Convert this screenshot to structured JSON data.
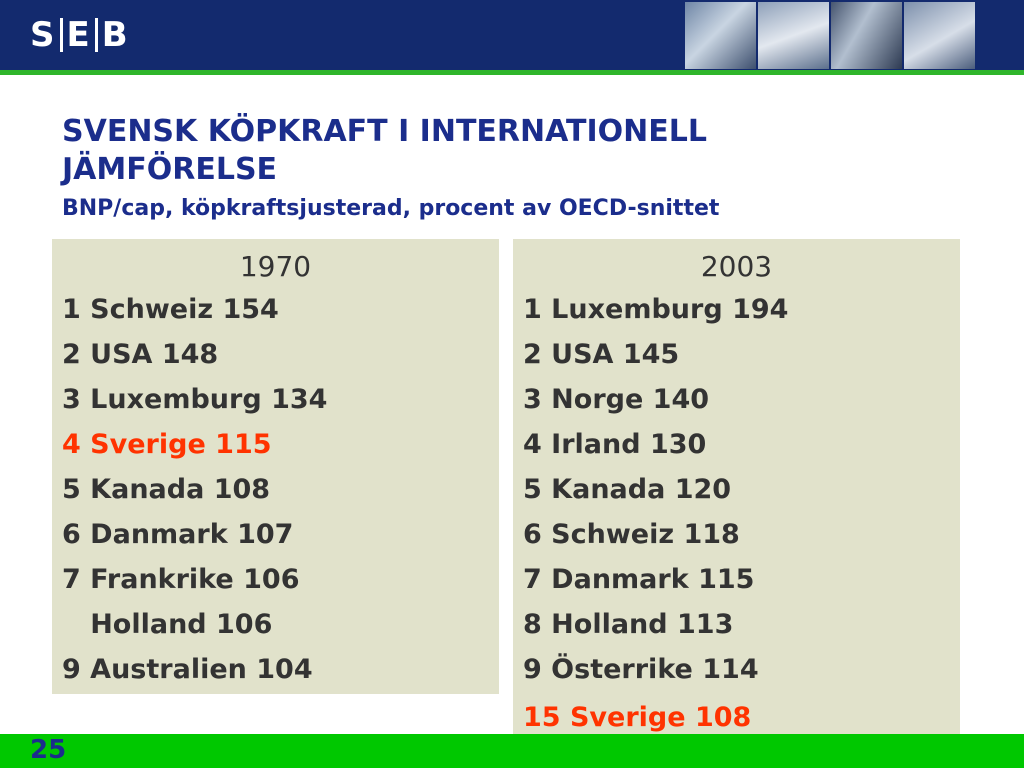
{
  "header": {
    "logo_text": "SEB",
    "logo_parts": [
      "S",
      "E",
      "B"
    ]
  },
  "slide": {
    "title_line1": "SVENSK KÖPKRAFT I INTERNATIONELL",
    "title_line2": "JÄMFÖRELSE",
    "subtitle": "BNP/cap, köpkraftsjusterad, procent av OECD-snittet"
  },
  "table_1970": {
    "year": "1970",
    "rows": [
      {
        "text": "1 Schweiz 154",
        "highlight": false
      },
      {
        "text": "2 USA 148",
        "highlight": false
      },
      {
        "text": "3 Luxemburg 134",
        "highlight": false
      },
      {
        "text": "4 Sverige 115",
        "highlight": true
      },
      {
        "text": "5 Kanada 108",
        "highlight": false
      },
      {
        "text": "6 Danmark 107",
        "highlight": false
      },
      {
        "text": "7 Frankrike 106",
        "highlight": false
      },
      {
        "text": "   Holland 106",
        "highlight": false
      },
      {
        "text": "9 Australien 104",
        "highlight": false
      }
    ]
  },
  "table_2003": {
    "year": "2003",
    "rows": [
      {
        "text": "1 Luxemburg 194",
        "highlight": false
      },
      {
        "text": "2 USA 145",
        "highlight": false
      },
      {
        "text": "3 Norge 140",
        "highlight": false
      },
      {
        "text": "4 Irland 130",
        "highlight": false
      },
      {
        "text": "5 Kanada 120",
        "highlight": false
      },
      {
        "text": "6 Schweiz 118",
        "highlight": false
      },
      {
        "text": "7 Danmark 115",
        "highlight": false
      },
      {
        "text": "8 Holland 113",
        "highlight": false
      },
      {
        "text": "9 Österrike 114",
        "highlight": false
      }
    ],
    "extra_row": {
      "text": "15 Sverige 108",
      "highlight": true
    }
  },
  "footer": {
    "page_number": "25"
  },
  "colors": {
    "header_bg": "#132a6e",
    "accent_green": "#00c800",
    "title_blue": "#1b2d8c",
    "panel_bg": "#e1e2cb",
    "highlight_red": "#ff3300"
  }
}
